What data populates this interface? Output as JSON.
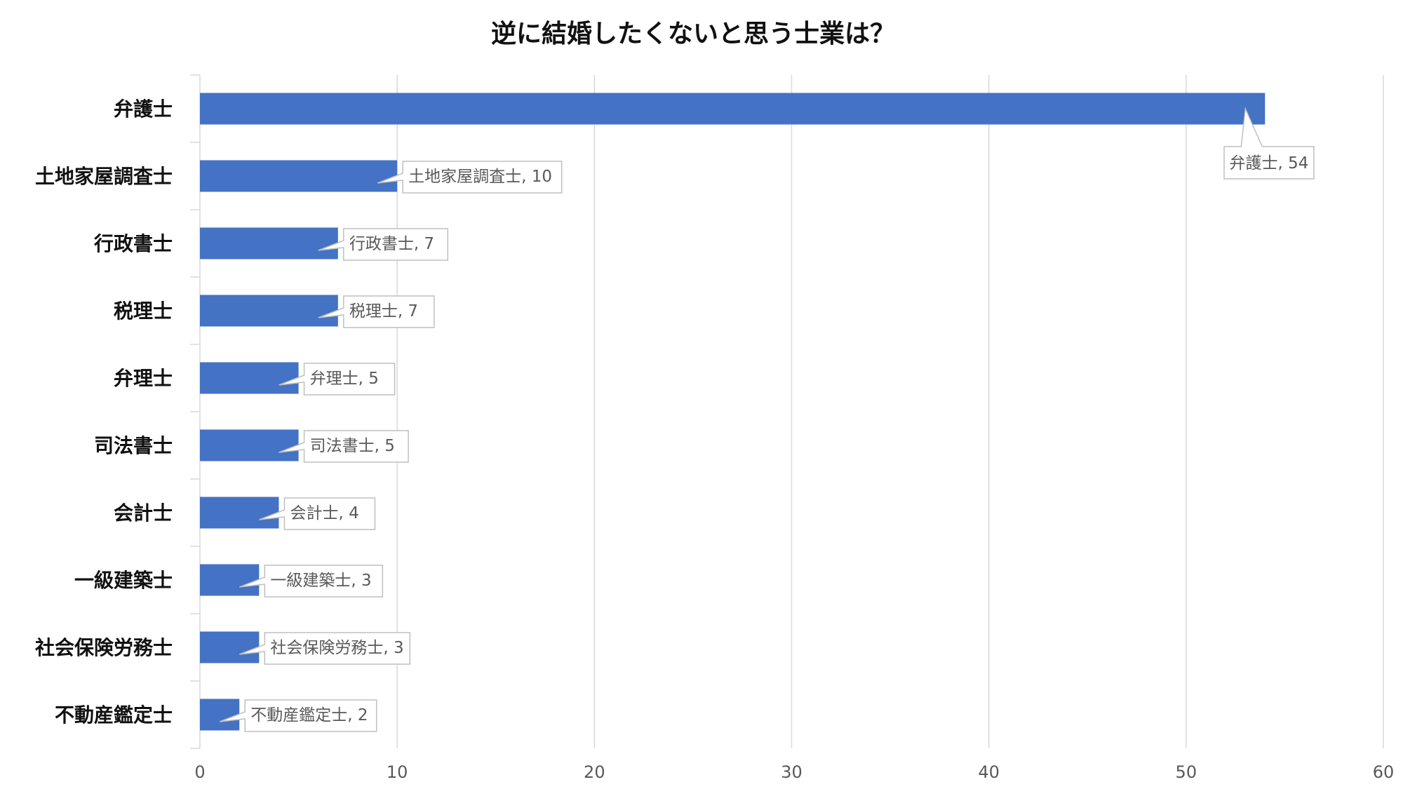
{
  "chart_data": {
    "type": "bar",
    "orientation": "horizontal",
    "title": "逆に結婚したくないと思う士業は？",
    "xlabel": "",
    "ylabel": "",
    "categories": [
      "弁護士",
      "土地家屋調査士",
      "行政書士",
      "税理士",
      "弁理士",
      "司法書士",
      "会計士",
      "一級建築士",
      "社会保険労務士",
      "不動産鑑定士"
    ],
    "values": [
      54,
      10,
      7,
      7,
      5,
      5,
      4,
      3,
      3,
      2
    ],
    "data_labels": [
      "弁護士, 54",
      "土地家屋調査士, 10",
      "行政書士, 7",
      "税理士, 7",
      "弁理士, 5",
      "司法書士, 5",
      "会計士, 4",
      "一級建築士, 3",
      "社会保険労務士, 3",
      "不動産鑑定士, 2"
    ],
    "xlim": [
      0,
      60
    ],
    "x_ticks": [
      "0",
      "10",
      "20",
      "30",
      "40",
      "50",
      "60"
    ],
    "grid": "vertical",
    "legend": "none",
    "bar_color": "#4472C4",
    "grid_color": "#D9D9D9",
    "callout_border_color": "#BFBFBF"
  }
}
